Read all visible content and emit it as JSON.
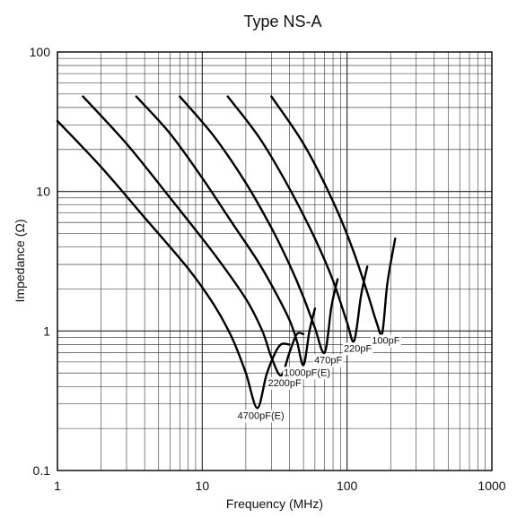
{
  "chart_data": {
    "type": "line",
    "title": "Type NS-A",
    "xlabel": "Frequency (MHz)",
    "ylabel": "Impedance (Ω)",
    "xscale": "log",
    "yscale": "log",
    "xlim": [
      1,
      1000
    ],
    "ylim": [
      0.1,
      100
    ],
    "grid": true,
    "x_tick_labels": [
      "1",
      "10",
      "100",
      "1000"
    ],
    "y_tick_labels": [
      "0.1",
      "1",
      "10",
      "100"
    ],
    "series": [
      {
        "name": "4700pF(E)",
        "x": [
          1,
          2,
          4,
          8,
          12,
          16,
          20,
          24,
          28,
          34,
          40
        ],
        "y": [
          32,
          15,
          6.5,
          2.8,
          1.55,
          0.9,
          0.5,
          0.28,
          0.5,
          0.78,
          0.8
        ]
      },
      {
        "name": "2200pF",
        "x": [
          1.5,
          3,
          6,
          12,
          20,
          26,
          30,
          35,
          40,
          45,
          50
        ],
        "y": [
          48,
          22,
          9,
          3.6,
          1.7,
          1.0,
          0.65,
          0.48,
          0.7,
          0.95,
          0.95
        ]
      },
      {
        "name": "1000pF(E)",
        "x": [
          3.5,
          6,
          10,
          16,
          24,
          32,
          40,
          45,
          50,
          55,
          60
        ],
        "y": [
          48,
          26,
          12.5,
          6.0,
          3.2,
          1.9,
          1.2,
          0.85,
          0.57,
          1.0,
          1.45
        ]
      },
      {
        "name": "470pF",
        "x": [
          7,
          12,
          20,
          30,
          40,
          50,
          60,
          70,
          78,
          86
        ],
        "y": [
          48,
          25,
          11.5,
          5.5,
          3.0,
          1.75,
          1.05,
          0.7,
          1.5,
          2.35
        ]
      },
      {
        "name": "220pF",
        "x": [
          15,
          25,
          40,
          60,
          80,
          100,
          112,
          125,
          138
        ],
        "y": [
          48,
          24,
          10.5,
          4.6,
          2.3,
          1.15,
          0.85,
          1.8,
          2.9
        ]
      },
      {
        "name": "100pF",
        "x": [
          30,
          50,
          80,
          110,
          140,
          160,
          175,
          190,
          215
        ],
        "y": [
          48,
          22,
          8.5,
          3.8,
          1.8,
          1.15,
          0.97,
          2.2,
          4.6
        ]
      }
    ]
  }
}
